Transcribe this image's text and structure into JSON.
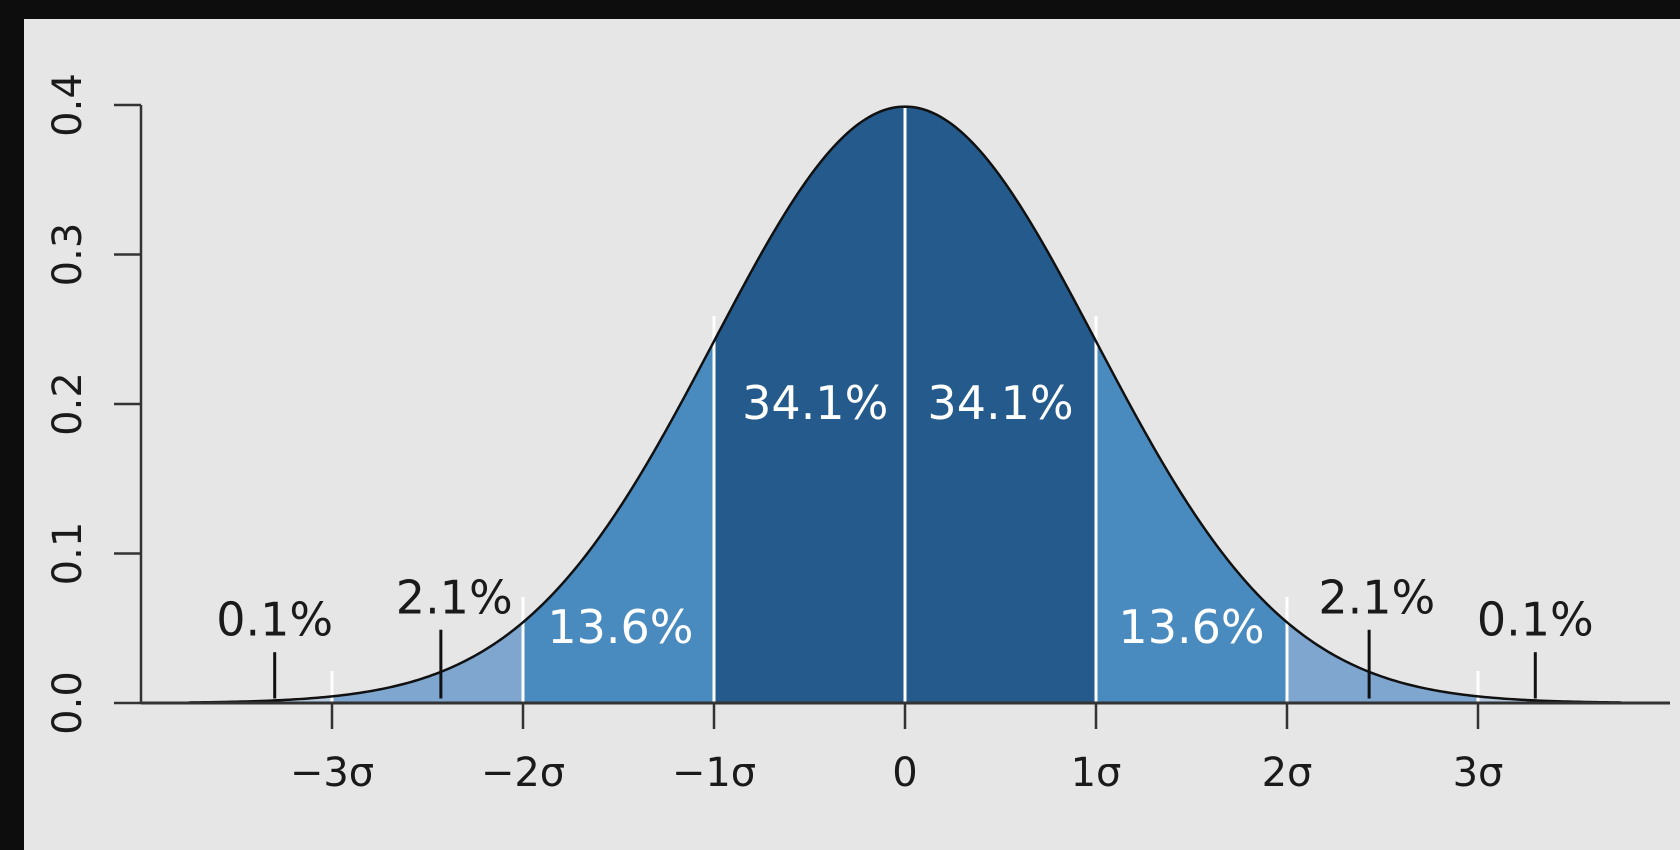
{
  "chart_data": {
    "type": "area",
    "title": "",
    "xlabel": "",
    "ylabel": "",
    "distribution": "standard normal",
    "xlim": [
      -3.75,
      3.75
    ],
    "ylim": [
      0,
      0.4
    ],
    "x_ticks": [
      {
        "value": -3,
        "label": "−3σ"
      },
      {
        "value": -2,
        "label": "−2σ"
      },
      {
        "value": -1,
        "label": "−1σ"
      },
      {
        "value": 0,
        "label": "0"
      },
      {
        "value": 1,
        "label": "1σ"
      },
      {
        "value": 2,
        "label": "2σ"
      },
      {
        "value": 3,
        "label": "3σ"
      }
    ],
    "y_ticks": [
      {
        "value": 0.0,
        "label": "0.0"
      },
      {
        "value": 0.1,
        "label": "0.1"
      },
      {
        "value": 0.2,
        "label": "0.2"
      },
      {
        "value": 0.3,
        "label": "0.3"
      },
      {
        "value": 0.4,
        "label": "0.4"
      }
    ],
    "bands": [
      {
        "from": -1,
        "to": 0,
        "percent": "34.1%",
        "color": "#245a8c",
        "label_pos": "inside",
        "label_x": -0.47,
        "label_y": 0.19
      },
      {
        "from": 0,
        "to": 1,
        "percent": "34.1%",
        "color": "#245a8c",
        "label_pos": "inside",
        "label_x": 0.5,
        "label_y": 0.19
      },
      {
        "from": -2,
        "to": -1,
        "percent": "13.6%",
        "color": "#4a8bbf",
        "label_pos": "inside",
        "label_x": -1.49,
        "label_y": 0.04
      },
      {
        "from": 1,
        "to": 2,
        "percent": "13.6%",
        "color": "#4a8bbf",
        "label_pos": "inside",
        "label_x": 1.5,
        "label_y": 0.04
      },
      {
        "from": -3,
        "to": -2,
        "percent": "2.1%",
        "color": "#7ea6cf",
        "label_pos": "outside",
        "label_x": -2.36,
        "label_y": 0.06,
        "pointer_x": -2.43
      },
      {
        "from": 2,
        "to": 3,
        "percent": "2.1%",
        "color": "#7ea6cf",
        "label_pos": "outside",
        "label_x": 2.47,
        "label_y": 0.06,
        "pointer_x": 2.43
      },
      {
        "from": -3.75,
        "to": -3,
        "percent": "0.1%",
        "color": "#b4c8df",
        "label_pos": "outside",
        "label_x": -3.3,
        "label_y": 0.045,
        "pointer_x": -3.3
      },
      {
        "from": 3,
        "to": 3.75,
        "percent": "0.1%",
        "color": "#b4c8df",
        "label_pos": "outside",
        "label_x": 3.3,
        "label_y": 0.045,
        "pointer_x": 3.3
      }
    ],
    "grid": false,
    "legend": "none"
  }
}
